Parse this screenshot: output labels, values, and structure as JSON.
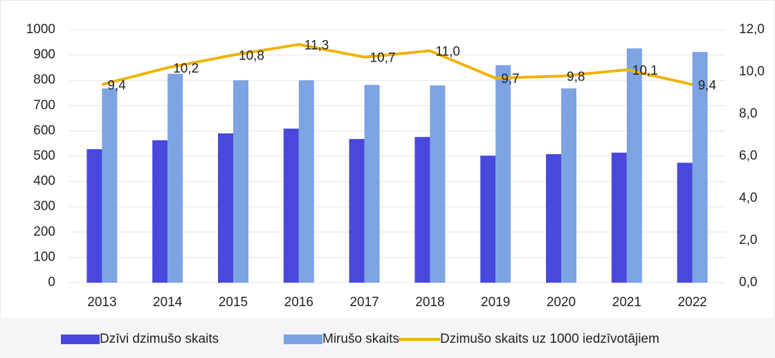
{
  "chart_data": {
    "type": "bar_line",
    "categories": [
      "2013",
      "2014",
      "2015",
      "2016",
      "2017",
      "2018",
      "2019",
      "2020",
      "2021",
      "2022"
    ],
    "series": [
      {
        "name": "Dzīvi dzimušo skaits",
        "type": "bar",
        "color": "#4848dc",
        "values": [
          528,
          563,
          590,
          609,
          568,
          576,
          502,
          508,
          514,
          474
        ]
      },
      {
        "name": "Mirušo skaits",
        "type": "bar",
        "color": "#7ea3e3",
        "values": [
          768,
          826,
          800,
          800,
          782,
          780,
          860,
          768,
          926,
          912
        ]
      },
      {
        "name": "Dzimušo skaits uz 1000 iedzīvotājiem",
        "type": "line",
        "axis": "y2",
        "color": "#efb300",
        "values": [
          9.4,
          10.2,
          10.8,
          11.3,
          10.7,
          11.0,
          9.7,
          9.8,
          10.1,
          9.4
        ],
        "value_labels": [
          "9,4",
          "10,2",
          "10,8",
          "11,3",
          "10,7",
          "11,0",
          "9,7",
          "9,8",
          "10,1",
          "9,4"
        ]
      }
    ],
    "ylim": [
      0,
      1000
    ],
    "yticks": [
      0,
      100,
      200,
      300,
      400,
      500,
      600,
      700,
      800,
      900,
      1000
    ],
    "y2lim": [
      0,
      12
    ],
    "y2ticks": [
      {
        "value": 0,
        "label": "0,0"
      },
      {
        "value": 2,
        "label": "2,0"
      },
      {
        "value": 4,
        "label": "4,0"
      },
      {
        "value": 6,
        "label": "6,0"
      },
      {
        "value": 8,
        "label": "8,0"
      },
      {
        "value": 10,
        "label": "10,0"
      },
      {
        "value": 12,
        "label": "12,0"
      }
    ],
    "grid": true,
    "legend": "bottom"
  }
}
